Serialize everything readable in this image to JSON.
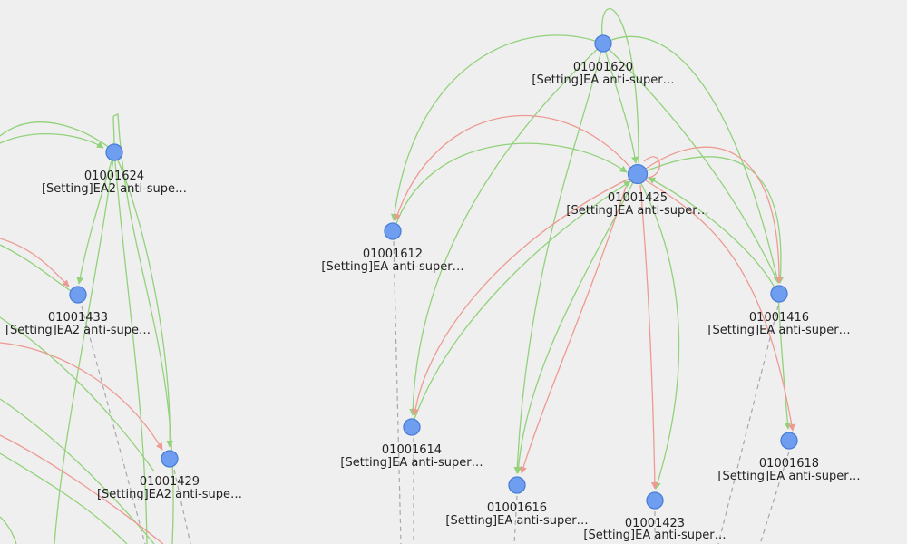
{
  "graph": {
    "colors": {
      "background": "#efefef",
      "node_fill": "#6f9ef0",
      "node_stroke": "#4a7fd6",
      "edge_green": "#92d27a",
      "edge_red": "#ee9a92",
      "edge_dashed": "#a8a8a8",
      "label_text": "#222222"
    },
    "nodes": [
      {
        "id": "01001620",
        "label": "[Setting]EA anti-super…"
      },
      {
        "id": "01001624",
        "label": "[Setting]EA2 anti-supe…"
      },
      {
        "id": "01001425",
        "label": "[Setting]EA anti-super…"
      },
      {
        "id": "01001612",
        "label": "[Setting]EA anti-super…"
      },
      {
        "id": "01001433",
        "label": "[Setting]EA2 anti-supe…"
      },
      {
        "id": "01001416",
        "label": "[Setting]EA anti-super…"
      },
      {
        "id": "01001614",
        "label": "[Setting]EA anti-super…"
      },
      {
        "id": "01001429",
        "label": "[Setting]EA2 anti-supe…"
      },
      {
        "id": "01001618",
        "label": "[Setting]EA anti-super…"
      },
      {
        "id": "01001616",
        "label": "[Setting]EA anti-super…"
      },
      {
        "id": "01001423",
        "label": "[Setting]EA anti-super…"
      }
    ]
  }
}
